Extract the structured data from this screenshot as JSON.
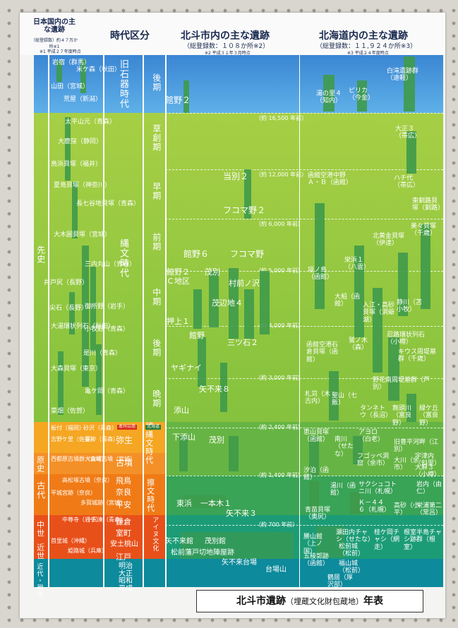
{
  "headers": {
    "japan": "日本国内の主な遺跡",
    "japan_count": "（総登録数）約４７万か所※1",
    "note1": "※1 平成２７年度時点",
    "period": "時代区分",
    "hokuto": "北斗市内の主な遺跡",
    "hokuto_count": "（総登録数：１０８か所※2）",
    "note2": "※2 平成３１年３月時点",
    "hokkaido": "北海道内の主な遺跡",
    "hokkaido_count": "（総登録数：１１,９２４か所※3）",
    "note3": "※3 平成２４年度時点"
  },
  "eras": {
    "senshi": "先史",
    "genshi": "原史",
    "kodai": "古代",
    "chusei": "中世",
    "kinsei": "近世",
    "kindai": "近代・現代"
  },
  "periods": {
    "paleolithic": "旧石器時代",
    "jomon": "縄文時代",
    "yayoi": "弥生",
    "kofun": "古墳",
    "asuka": "飛鳥",
    "nara": "奈良",
    "heian": "平安",
    "kamakura": "鎌倉",
    "muromachi": "室町",
    "azuchi": "安土桃山",
    "edo": "江戸",
    "modern": "明治大正昭和平成",
    "zoku_jomon": "続縄文時代",
    "satsumon": "擦文時代",
    "ainu": "アイヌ文化",
    "tag_honshu": "本州以南",
    "tag_hokkaido": "北海道",
    "tag_nuno": "中世",
    "tag_kinsei": "近世"
  },
  "subperiods": {
    "kouki_p": "後期",
    "sousouki": "草創期",
    "souki": "早期",
    "zenki": "前期",
    "chuki": "中期",
    "kouki": "後期",
    "banki": "晩期"
  },
  "ticks": {
    "t16500": "（約 16,500 年前）",
    "t12000": "（約 12,000 年前）",
    "t6000": "（約 6,000 年前）",
    "t5000": "（約 5,000 年前）",
    "t4000": "（約 4,000 年前）",
    "t3000": "（約 3,000 年前）",
    "t2400": "（約 2,400 年前）",
    "t1400": "（約 1,400 年前）",
    "t700": "（約 700 年前）"
  },
  "japan_sites": {
    "s1": "岩宿（群馬）",
    "s2": "米ケ森（秋田）",
    "s3": "山田（宮城）",
    "s4": "荒屋（新潟）",
    "s5": "太平山元（青森）",
    "s6": "大鹿窪（静岡）",
    "s7": "鳥浜貝塚（福井）",
    "s8": "夏島貝塚（神奈川）",
    "s9": "長七谷地貝塚（青森）",
    "s10": "大木囲貝塚（宮城）",
    "s11": "井戸尻（長野）",
    "s12": "三内丸山（青森）",
    "s13": "尖石（長野）",
    "s14": "御所野（岩手）",
    "s15": "大湯環状列石（秋田）",
    "s16": "小牧野（青森）",
    "s17": "是川（青森）",
    "s18": "大森貝塚（東京）",
    "s19": "亀ケ岡（青森）",
    "s20": "菜畑（佐賀）",
    "s21": "板付（福岡）",
    "s22": "砂沢（青森）",
    "s23": "吉野ケ里（佐賀）",
    "s24": "垂柳（青森）",
    "s25": "西都原古墳群（宮崎）",
    "s26": "大森塚古墳（宮城）",
    "s27": "高松塚古墳（奈良）",
    "s28": "平城宮跡（奈良）",
    "s29": "多賀城跡（宮城）",
    "s30": "中尊寺（岩手）",
    "s31": "十三湊（青森）",
    "s32": "首里城（沖縄）",
    "s33": "姫路城（兵庫）"
  },
  "hokuto_sites": {
    "h1": "館野２",
    "h2": "当別２",
    "h3": "フコマ野２",
    "h4": "館野６",
    "h5": "フコマ野",
    "h6": "館野２Ｃ地区",
    "h7": "茂別",
    "h8": "村前ノ沢",
    "h9": "茂辺地４",
    "h10": "押上１",
    "h11": "館野",
    "h12": "三ツ石２",
    "h13": "ヤギナイ",
    "h14": "矢不来８",
    "h15": "添山",
    "h16": "下添山",
    "h17": "茂別",
    "h18": "東浜",
    "h19": "一本木１",
    "h20": "矢不来３",
    "h21": "矢不来館",
    "h22": "茂別館",
    "h23": "松前藩戸切地陣屋跡",
    "h24": "矢不来台場",
    "h25": "台場山"
  },
  "hokkaido_sites": {
    "k1": "湯の里４（知内）",
    "k2": "ピリカ（今金）",
    "k3": "白滝遺跡群（遠軽）",
    "k4": "大正３（帯広）",
    "k5": "函館空港中野Ａ・Ｂ（函館）",
    "k6": "ハチ代（帯広）",
    "k7": "東釧路貝塚（釧路）",
    "k8": "北黄金貝塚（伊達）",
    "k9": "美々貝塚（千歳）",
    "k10": "栄浜１（八雲）",
    "k11": "垣ノ島（函館）",
    "k12": "大船（函館）",
    "k13": "入江・高砂貝塚（洞爺湖）",
    "k14": "静川（苫小牧）",
    "k15": "函館空港石倉貝塚（函館）",
    "k16": "鷲ノ木（森）",
    "k17": "忍路環状列石（小樽）",
    "k18": "キウス周堤墓群（千歳）",
    "k19": "野花南周堤墓群（芦別）",
    "k20": "札苅（木古内）",
    "k21": "聖山（七飯）",
    "k22": "タンネトウ（長沼）",
    "k23": "無頭川（富良野）",
    "k24": "緑ケ丘（富良野）",
    "k25": "恵山貝塚（函館）",
    "k26": "南川（せたな）",
    "k27": "アヨロ（白老）",
    "k28": "旧豊平河畔（江別）",
    "k29": "フゴッペ洞窟（余市）",
    "k30": "大川（余市）",
    "k31": "大麻３（小樽）",
    "k32": "宇津内（斜里）",
    "k33": "汐泊（函館）",
    "k34": "湯川（函館）",
    "k35": "サクシュコトニ川（札幌）",
    "k36": "岩内（由仁）",
    "k37": "Ｋ－４４６（札幌）",
    "k38": "青苗貝塚（奥尻）",
    "k39": "高砂（小平）",
    "k40": "栄浦第二（常呂）",
    "k41": "勝山館（上ノ国）",
    "k42": "瀬田内チャシ（せたな）",
    "k43": "五稜郭跡（函館）",
    "k44": "松前城（松前）",
    "k45": "福山城（松前）",
    "k46": "桂ケ岡チャシ（網走）",
    "k47": "根室半島チャシ跡群（根室）",
    "k48": "鶴居（厚沢部）"
  },
  "footer_title": {
    "main": "北斗市遺跡",
    "paren": "（埋蔵文化財包蔵地）",
    "tail": "年表"
  },
  "colors": {
    "ice": "#3d92d6",
    "jomon": "#8fc53a",
    "zoku": "#66b544",
    "satsumon": "#35a356",
    "ainu": "#189c74",
    "modern": "#0d8a9b",
    "yayoi": "#f5a623",
    "kodai": "#f07b16",
    "chusei": "#e8501a"
  }
}
